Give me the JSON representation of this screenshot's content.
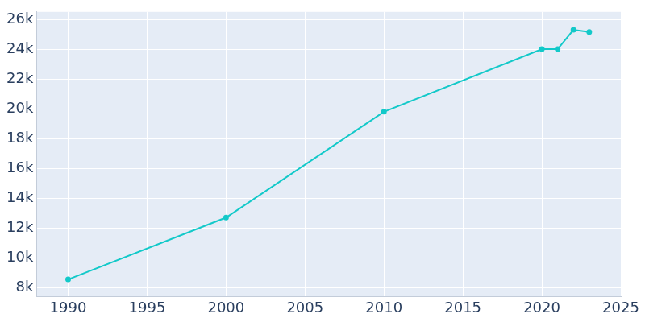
{
  "chart_data": {
    "type": "line",
    "x": [
      1990,
      2000,
      2010,
      2020,
      2021,
      2022,
      2023
    ],
    "values": [
      8550,
      12700,
      19800,
      24000,
      24000,
      25300,
      25150
    ],
    "color": "#13c9c9",
    "marker": "circle",
    "xlim": [
      1988,
      2025
    ],
    "xticks": [
      1990,
      1995,
      2000,
      2005,
      2010,
      2015,
      2020,
      2025
    ],
    "ylim": [
      7400,
      26500
    ],
    "yticks": [
      {
        "value": 8000,
        "label": "8k"
      },
      {
        "value": 10000,
        "label": "10k"
      },
      {
        "value": 12000,
        "label": "12k"
      },
      {
        "value": 14000,
        "label": "14k"
      },
      {
        "value": 16000,
        "label": "16k"
      },
      {
        "value": 18000,
        "label": "18k"
      },
      {
        "value": 20000,
        "label": "20k"
      },
      {
        "value": 22000,
        "label": "22k"
      },
      {
        "value": 24000,
        "label": "24k"
      },
      {
        "value": 26000,
        "label": "26k"
      }
    ],
    "grid": true
  }
}
